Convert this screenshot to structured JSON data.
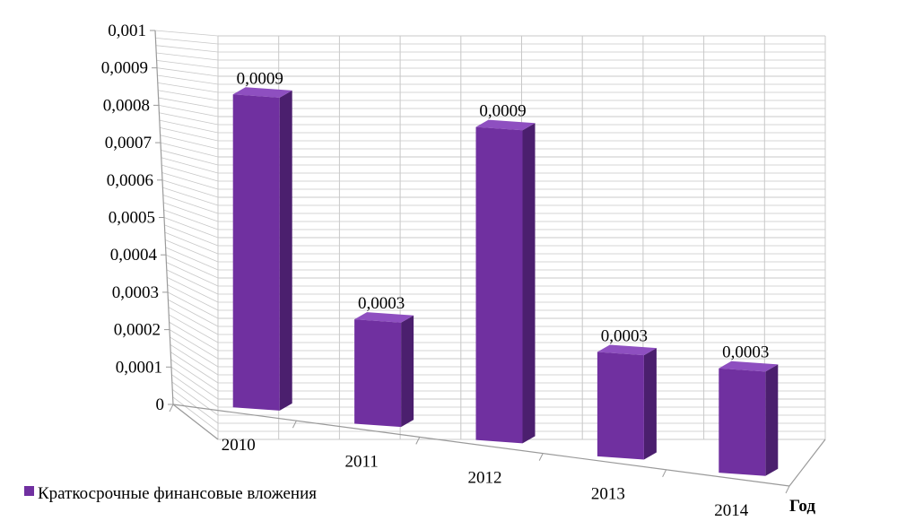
{
  "chart_data": {
    "type": "bar",
    "categories": [
      "2010",
      "2011",
      "2012",
      "2013",
      "2014"
    ],
    "series": [
      {
        "name": "Краткосрочные финансовые вложения",
        "values": [
          0.0009,
          0.0003,
          0.0009,
          0.0003,
          0.0003
        ],
        "data_labels": [
          "0,0009",
          "0,0003",
          "0,0009",
          "0,0003",
          "0,0003"
        ]
      }
    ],
    "y_ticks": [
      "0",
      "0,0001",
      "0,0002",
      "0,0003",
      "0,0004",
      "0,0005",
      "0,0006",
      "0,0007",
      "0,0008",
      "0,0009",
      "0,001"
    ],
    "ylim": [
      0,
      0.001
    ],
    "xlabel": "Год",
    "ylabel": "",
    "title": "",
    "grid": true,
    "legend_position": "bottom-left",
    "colors": {
      "bar_front": "#7030a0",
      "bar_side": "#4b1f6e",
      "bar_top": "#8e4fc0",
      "grid": "#c8c8c8",
      "axis": "#9a9a9a"
    }
  }
}
